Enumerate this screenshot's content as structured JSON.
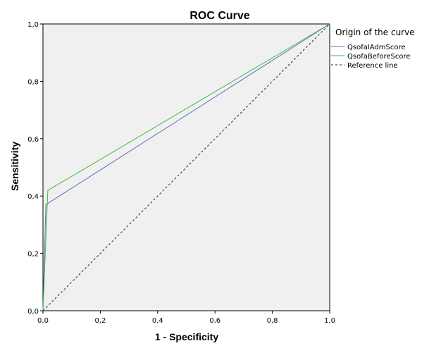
{
  "chart_data": {
    "type": "line",
    "title": "ROC Curve",
    "xlabel": "1 - Specificity",
    "ylabel": "Sensitivity",
    "xlim": [
      0,
      1
    ],
    "ylim": [
      0,
      1
    ],
    "x_ticks": [
      "0,0",
      "0,2",
      "0,4",
      "0,6",
      "0,8",
      "1,0"
    ],
    "y_ticks": [
      "0,0",
      "0,2",
      "0,4",
      "0,6",
      "0,8",
      "1,0"
    ],
    "tick_values": [
      0,
      0.2,
      0.4,
      0.6,
      0.8,
      1.0
    ],
    "grid": false,
    "background": "#f0f0f0",
    "legend": {
      "title": "Origin of the curve",
      "placement": "right"
    },
    "series": [
      {
        "name": "QsofaIAdmScore",
        "color": "#5b6fbf",
        "dash": false,
        "points": [
          [
            0,
            0
          ],
          [
            0.01,
            0.37
          ],
          [
            1,
            1
          ]
        ]
      },
      {
        "name": "QsofaBeforeScore",
        "color": "#3db83d",
        "dash": false,
        "points": [
          [
            0,
            0
          ],
          [
            0.017,
            0.42
          ],
          [
            0.12,
            0.48
          ],
          [
            1,
            1
          ]
        ]
      },
      {
        "name": "Reference line",
        "color": "#222222",
        "dash": true,
        "points": [
          [
            0,
            0
          ],
          [
            1,
            1
          ]
        ]
      }
    ]
  }
}
